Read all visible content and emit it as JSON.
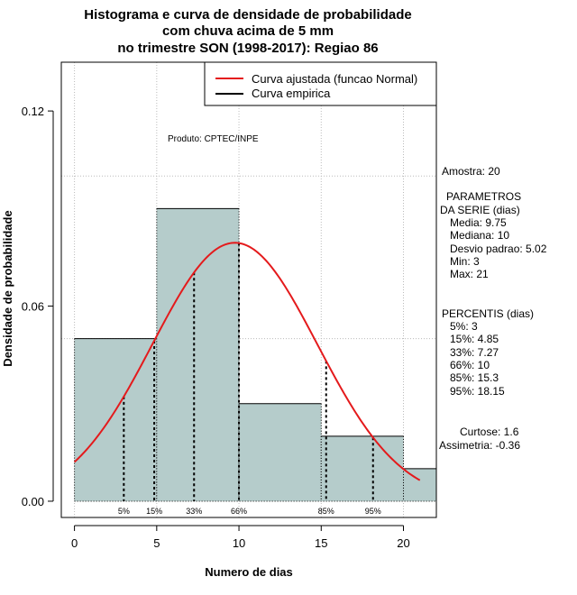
{
  "chart_data": {
    "type": "bar",
    "title_lines": [
      "Histograma e curva de densidade de probabilidade",
      "com chuva acima de 5 mm",
      "no trimestre SON (1998-2017): Regiao 86"
    ],
    "xlabel": "Numero de dias",
    "ylabel": "Densidade de probabilidade",
    "xlim": [
      -0.8,
      22
    ],
    "ylim": [
      -0.005,
      0.135
    ],
    "x_ticks": [
      0,
      5,
      10,
      15,
      20
    ],
    "y_ticks": [
      0.0,
      0.06,
      0.12
    ],
    "y_tick_labels": [
      "0.00",
      "0.06",
      "0.12"
    ],
    "grid_x": [
      0,
      5,
      10,
      15,
      20
    ],
    "grid_y": [
      0.05,
      0.1
    ],
    "bins": [
      {
        "from": 0,
        "to": 5,
        "density": 0.05
      },
      {
        "from": 5,
        "to": 10,
        "density": 0.09
      },
      {
        "from": 10,
        "to": 15,
        "density": 0.03
      },
      {
        "from": 15,
        "to": 20,
        "density": 0.02
      },
      {
        "from": 20,
        "to": 22,
        "density": 0.01
      }
    ],
    "bar_color": "#b5cccb",
    "curve_color": "#e41a1c",
    "normal_curve": {
      "mean": 9.75,
      "sd": 5.02,
      "x_from": 0,
      "x_to": 21
    },
    "percentile_lines": [
      {
        "label": "5%",
        "x": 3
      },
      {
        "label": "15%",
        "x": 4.85
      },
      {
        "label": "33%",
        "x": 7.27
      },
      {
        "label": "66%",
        "x": 10
      },
      {
        "label": "85%",
        "x": 15.3
      },
      {
        "label": "95%",
        "x": 18.15
      }
    ],
    "legend": [
      {
        "label": "Curva ajustada (funcao Normal)",
        "color": "#e41a1c"
      },
      {
        "label": "Curva empirica",
        "color": "#000000"
      }
    ],
    "legend_position": "top-right",
    "producer": "Produto: CPTEC/INPE",
    "stats": {
      "amostra": "Amostra: 20",
      "parametros_title": [
        "PARAMETROS",
        "DA SERIE (dias)"
      ],
      "parametros": [
        "Media: 9.75",
        "Mediana: 10",
        "Desvio padrao: 5.02",
        "Min: 3",
        "Max: 21"
      ],
      "percentis_title": "PERCENTIS (dias)",
      "percentis": [
        "5%: 3",
        "15%: 4.85",
        "33%: 7.27",
        "66%: 10",
        "85%: 15.3",
        "95%: 18.15"
      ],
      "curtose": "Curtose: 1.6",
      "assimetria": "Assimetria: -0.36"
    }
  }
}
